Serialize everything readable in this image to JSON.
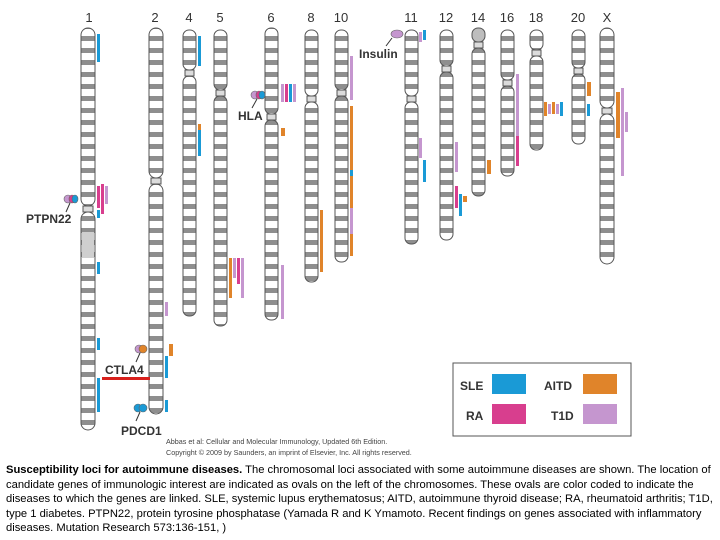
{
  "chromosome_labels": [
    "1",
    "2",
    "4",
    "5",
    "6",
    "8",
    "10",
    "11",
    "12",
    "14",
    "16",
    "18",
    "20",
    "X"
  ],
  "gene_labels": {
    "insulin": "Insulin",
    "hla": "HLA",
    "ptpn22": "PTPN22",
    "ctla4": "CTLA4",
    "pdcd1": "PDCD1"
  },
  "legend": {
    "items": [
      {
        "label": "SLE",
        "color": "#1a9ad6"
      },
      {
        "label": "AITD",
        "color": "#e0842a"
      },
      {
        "label": "RA",
        "color": "#d83e8e"
      },
      {
        "label": "T1D",
        "color": "#c596cf"
      }
    ]
  },
  "credit": {
    "line1": "Abbas et al: Cellular and Molecular Immunology, Updated 6th Edition.",
    "line2": "Copyright © 2009 by Saunders, an imprint of Elsevier, Inc. All rights reserved."
  },
  "caption": {
    "title": "Susceptibility loci for autoimmune diseases.",
    "body": " The chromosomal loci associated with some autoimmune diseases are shown. The location of candidate genes of immunologic interest are indicated as ovals on the left of the chromosomes. These ovals are color coded to indicate the diseases to which the genes are linked. SLE, systemic lupus erythematosus; AITD, autoimmune thyroid disease; RA, rheumatoid arthritis; T1D, type 1 diabetes. PTPN22, protein tyrosine phosphatase (Yamada R and K Ymamoto. Recent findings on genes associated with inflammatory diseases. Mutation Research 573:136-151, )"
  },
  "colors": {
    "sle": "#1a9ad6",
    "aitd": "#e0842a",
    "ra": "#d83e8e",
    "t1d": "#c596cf",
    "ctla4_underline": "#d8201c"
  }
}
